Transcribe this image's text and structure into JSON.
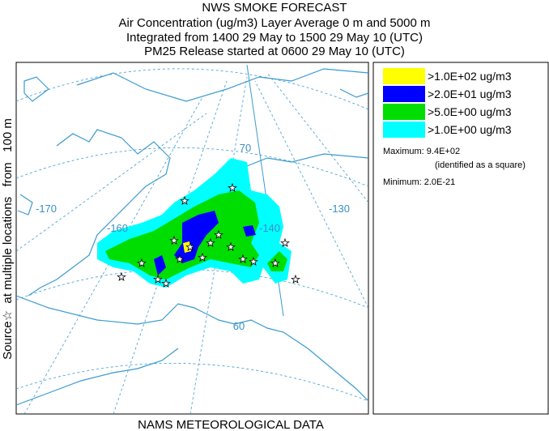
{
  "title": "NWS SMOKE FORECAST",
  "subtitle_lines": [
    "Air Concentration (ug/m3) Layer Average    0 m and  5000 m",
    "Integrated from 1400 29 May to 1500 29 May 10 (UTC)",
    "PM25 Release started at 0600 29 May 10 (UTC)"
  ],
  "side_label": "Source☆  at multiple locations   from   100 m",
  "footer": "NAMS METEOROLOGICAL DATA",
  "map_labels": {
    "lon_170": "-170",
    "lon_160": "-160",
    "lon_140": "-140",
    "lon_130": "-130",
    "lat_70": "70",
    "lat_60": "60"
  },
  "legend": [
    {
      "label": ">1.0E+02 ug/m3",
      "color": "#ffff00"
    },
    {
      "label": ">2.0E+01 ug/m3",
      "color": "#0000ff"
    },
    {
      "label": ">5.0E+00 ug/m3",
      "color": "#00dd00"
    },
    {
      "label": ">1.0E+00 ug/m3",
      "color": "#00ffff"
    }
  ],
  "maximum": "Maximum: 9.4E+02",
  "maximum_note": "(identified as a square)",
  "minimum": "Minimum: 2.0E-21"
}
